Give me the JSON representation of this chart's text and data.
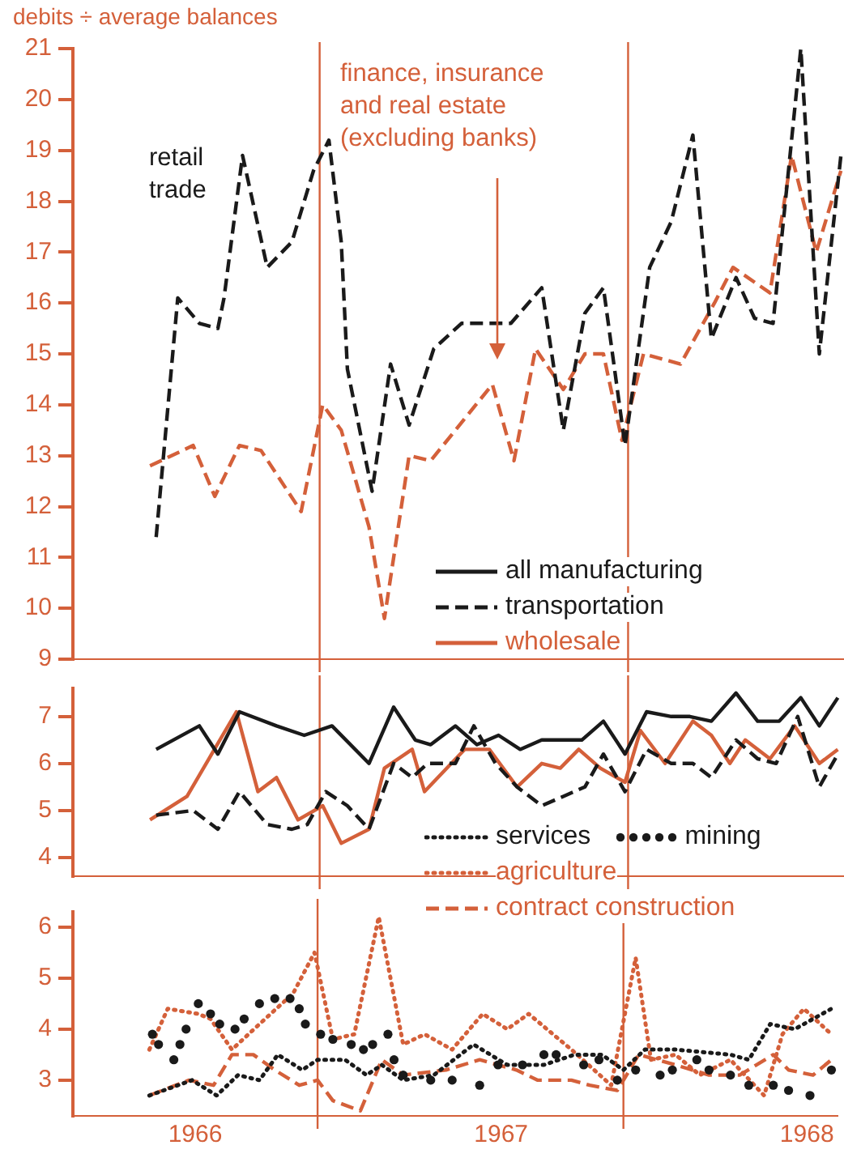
{
  "chart_data": [
    {
      "type": "line",
      "ylabel": "debits ÷ average balances",
      "xlim": [
        1965.6,
        1968.1
      ],
      "xticks": [
        1966,
        1967,
        1968
      ],
      "ylim": [
        9,
        21
      ],
      "yticks": [
        9,
        10,
        11,
        12,
        13,
        14,
        15,
        16,
        17,
        18,
        19,
        20,
        21
      ],
      "tick_labels": "y",
      "legend": false,
      "ref_lines": [
        {
          "axis": "x",
          "value": 1966.4,
          "color": "#d4603a"
        },
        {
          "axis": "x",
          "value": 1967.4,
          "color": "#d4603a"
        }
      ],
      "series": [
        {
          "name": "retail trade",
          "color": "#1a1a1a",
          "line_style": "dashed",
          "x": [
            1965.87,
            1965.94,
            1966.01,
            1966.07,
            1966.09,
            1966.15,
            1966.23,
            1966.31,
            1966.38,
            1966.43,
            1966.47,
            1966.49,
            1966.57,
            1966.63,
            1966.69,
            1966.77,
            1966.86,
            1967.02,
            1967.12,
            1967.19,
            1967.26,
            1967.32,
            1967.39,
            1967.47,
            1967.54,
            1967.61,
            1967.67,
            1967.75,
            1967.81,
            1967.87,
            1967.96,
            1968.02,
            1968.09
          ],
          "values": [
            11.4,
            16.1,
            15.6,
            15.5,
            16.1,
            18.9,
            16.7,
            17.2,
            18.6,
            19.2,
            17.2,
            14.7,
            12.3,
            14.8,
            13.6,
            15.1,
            15.6,
            15.6,
            16.3,
            13.5,
            15.8,
            16.3,
            13.2,
            16.7,
            17.6,
            19.3,
            15.3,
            16.5,
            15.7,
            15.6,
            21.0,
            15.0,
            18.9
          ]
        },
        {
          "name": "finance, insurance and real estate (excluding banks)",
          "color": "#d4603a",
          "line_style": "dashed",
          "x": [
            1965.85,
            1965.99,
            1966.06,
            1966.14,
            1966.21,
            1966.34,
            1966.41,
            1966.47,
            1966.56,
            1966.61,
            1966.69,
            1966.76,
            1966.84,
            1966.96,
            1967.03,
            1967.1,
            1967.19,
            1967.26,
            1967.32,
            1967.38,
            1967.45,
            1967.57,
            1967.68,
            1967.74,
            1967.86,
            1967.93,
            1968.01,
            1968.09
          ],
          "values": [
            12.8,
            13.2,
            12.2,
            13.2,
            13.1,
            11.9,
            14.0,
            13.5,
            11.6,
            9.8,
            13.0,
            12.9,
            13.5,
            14.4,
            12.9,
            15.1,
            14.3,
            15.0,
            15.0,
            13.3,
            15.0,
            14.8,
            16.0,
            16.7,
            16.2,
            18.9,
            17.0,
            18.6
          ]
        }
      ]
    },
    {
      "type": "line",
      "xlim": [
        1965.6,
        1968.1
      ],
      "xticks": [
        1966,
        1967,
        1968
      ],
      "ylim": [
        3.6,
        7.6
      ],
      "yticks": [
        4,
        5,
        6,
        7
      ],
      "tick_labels": "y",
      "legend": "top right",
      "ref_lines": [
        {
          "axis": "x",
          "value": 1966.4,
          "color": "#d4603a"
        },
        {
          "axis": "x",
          "value": 1967.4,
          "color": "#d4603a"
        }
      ],
      "series": [
        {
          "name": "all manufacturing",
          "color": "#1a1a1a",
          "line_style": "solid",
          "x": [
            1965.87,
            1966.01,
            1966.07,
            1966.14,
            1966.26,
            1966.35,
            1966.44,
            1966.56,
            1966.64,
            1966.71,
            1966.76,
            1966.84,
            1966.91,
            1966.98,
            1967.05,
            1967.12,
            1967.19,
            1967.25,
            1967.32,
            1967.39,
            1967.46,
            1967.54,
            1967.6,
            1967.67,
            1967.75,
            1967.82,
            1967.89,
            1967.96,
            1968.02,
            1968.08
          ],
          "values": [
            6.3,
            6.8,
            6.2,
            7.1,
            6.8,
            6.6,
            6.8,
            6.0,
            7.2,
            6.5,
            6.4,
            6.8,
            6.4,
            6.6,
            6.3,
            6.5,
            6.5,
            6.5,
            6.9,
            6.2,
            7.1,
            7.0,
            7.0,
            6.9,
            7.5,
            6.9,
            6.9,
            7.4,
            6.8,
            7.4
          ]
        },
        {
          "name": "transportation",
          "color": "#1a1a1a",
          "line_style": "dashed",
          "x": [
            1965.87,
            1965.99,
            1966.07,
            1966.14,
            1966.23,
            1966.31,
            1966.36,
            1966.42,
            1966.49,
            1966.56,
            1966.64,
            1966.7,
            1966.75,
            1966.84,
            1966.9,
            1966.97,
            1967.04,
            1967.12,
            1967.19,
            1967.26,
            1967.32,
            1967.39,
            1967.46,
            1967.54,
            1967.61,
            1967.67,
            1967.75,
            1967.82,
            1967.88,
            1967.95,
            1968.02,
            1968.08
          ],
          "values": [
            4.9,
            5.0,
            4.6,
            5.4,
            4.7,
            4.6,
            4.7,
            5.4,
            5.1,
            4.6,
            6.0,
            5.7,
            6.0,
            6.0,
            6.8,
            6.0,
            5.5,
            5.1,
            5.3,
            5.5,
            6.2,
            5.4,
            6.3,
            6.0,
            6.0,
            5.7,
            6.5,
            6.1,
            6.0,
            7.0,
            5.5,
            6.2
          ]
        },
        {
          "name": "wholesale",
          "color": "#d4603a",
          "line_style": "solid",
          "x": [
            1965.85,
            1965.97,
            1966.05,
            1966.13,
            1966.2,
            1966.26,
            1966.33,
            1966.41,
            1966.47,
            1966.56,
            1966.61,
            1966.7,
            1966.74,
            1966.87,
            1966.95,
            1967.04,
            1967.12,
            1967.18,
            1967.24,
            1967.31,
            1967.39,
            1967.44,
            1967.52,
            1967.61,
            1967.67,
            1967.73,
            1967.78,
            1967.86,
            1967.94,
            1968.02,
            1968.08
          ],
          "values": [
            4.8,
            5.3,
            6.2,
            7.1,
            5.4,
            5.7,
            4.8,
            5.1,
            4.3,
            4.6,
            5.9,
            6.3,
            5.4,
            6.3,
            6.3,
            5.5,
            6.0,
            5.9,
            6.3,
            5.9,
            5.6,
            6.7,
            6.0,
            6.9,
            6.6,
            6.0,
            6.5,
            6.1,
            6.8,
            6.0,
            6.3
          ]
        }
      ]
    },
    {
      "type": "line",
      "xlim": [
        1965.6,
        1968.1
      ],
      "ylim": [
        2.3,
        6.3
      ],
      "yticks": [
        3,
        4,
        5,
        6
      ],
      "xticks": [
        1966,
        1967,
        1968
      ],
      "legend": "top right",
      "ref_lines": [
        {
          "axis": "x",
          "value": 1966.4,
          "color": "#d4603a"
        },
        {
          "axis": "x",
          "value": 1967.4,
          "color": "#d4603a"
        }
      ],
      "series": [
        {
          "name": "services",
          "color": "#1a1a1a",
          "line_style": "dotted",
          "x": [
            1965.85,
            1965.99,
            1966.07,
            1966.14,
            1966.21,
            1966.27,
            1966.35,
            1966.4,
            1966.49,
            1966.56,
            1966.61,
            1966.68,
            1966.78,
            1966.91,
            1967.02,
            1967.14,
            1967.24,
            1967.33,
            1967.4,
            1967.47,
            1967.57,
            1967.75,
            1967.81,
            1967.88,
            1967.96,
            1968.08
          ],
          "values": [
            2.7,
            3.0,
            2.7,
            3.1,
            3.0,
            3.5,
            3.2,
            3.4,
            3.4,
            3.1,
            3.3,
            3.0,
            3.1,
            3.7,
            3.3,
            3.3,
            3.5,
            3.5,
            3.2,
            3.6,
            3.6,
            3.5,
            3.4,
            4.1,
            4.0,
            4.4
          ]
        },
        {
          "name": "mining",
          "type": "scatter",
          "color": "#1a1a1a",
          "marker": "circle",
          "x": [
            1965.86,
            1965.88,
            1965.93,
            1965.95,
            1965.97,
            1966.01,
            1966.05,
            1966.08,
            1966.13,
            1966.16,
            1966.21,
            1966.26,
            1966.31,
            1966.34,
            1966.36,
            1966.41,
            1966.45,
            1966.51,
            1966.55,
            1966.58,
            1966.63,
            1966.65,
            1966.68,
            1966.77,
            1966.84,
            1966.93,
            1966.99,
            1967.07,
            1967.14,
            1967.18,
            1967.27,
            1967.32,
            1967.38,
            1967.44,
            1967.52,
            1967.56,
            1967.64,
            1967.68,
            1967.75,
            1967.81,
            1967.89,
            1967.94,
            1968.01,
            1968.08
          ],
          "values": [
            3.9,
            3.7,
            3.4,
            3.7,
            4.0,
            4.5,
            4.3,
            4.1,
            4.0,
            4.2,
            4.5,
            4.6,
            4.6,
            4.4,
            4.1,
            3.9,
            3.8,
            3.7,
            3.6,
            3.7,
            3.9,
            3.4,
            3.1,
            3.0,
            3.0,
            2.9,
            3.3,
            3.3,
            3.5,
            3.5,
            3.3,
            3.4,
            3.0,
            3.2,
            3.1,
            3.2,
            3.4,
            3.2,
            3.1,
            2.9,
            2.9,
            2.8,
            2.7,
            3.2
          ]
        },
        {
          "name": "agriculture",
          "color": "#d4603a",
          "line_style": "dotted",
          "x": [
            1965.85,
            1965.91,
            1966.01,
            1966.05,
            1966.12,
            1966.21,
            1966.32,
            1966.39,
            1966.45,
            1966.52,
            1966.6,
            1966.68,
            1966.75,
            1966.84,
            1966.94,
            1967.02,
            1967.09,
            1967.23,
            1967.36,
            1967.44,
            1967.49,
            1967.57,
            1967.65,
            1967.75,
            1967.86,
            1967.92,
            1967.99,
            1968.08
          ],
          "values": [
            3.6,
            4.4,
            4.3,
            4.2,
            3.6,
            4.1,
            4.7,
            5.5,
            3.8,
            3.9,
            6.2,
            3.7,
            3.9,
            3.6,
            4.3,
            4.0,
            4.3,
            3.6,
            2.9,
            5.4,
            3.4,
            3.5,
            3.1,
            3.4,
            2.7,
            3.9,
            4.4,
            3.9
          ]
        },
        {
          "name": "contract construction",
          "color": "#d4603a",
          "line_style": "dashed",
          "x": [
            1965.85,
            1965.98,
            1966.06,
            1966.12,
            1966.19,
            1966.26,
            1966.34,
            1966.4,
            1966.45,
            1966.54,
            1966.61,
            1966.68,
            1966.82,
            1966.93,
            1967.05,
            1967.12,
            1967.23,
            1967.29,
            1967.38,
            1967.45,
            1967.57,
            1967.68,
            1967.78,
            1967.89,
            1967.94,
            1968.02,
            1968.08
          ],
          "values": [
            2.7,
            3.0,
            2.9,
            3.5,
            3.5,
            3.2,
            2.9,
            3.0,
            2.6,
            2.4,
            3.4,
            3.1,
            3.2,
            3.4,
            3.2,
            3.0,
            3.0,
            2.9,
            2.8,
            3.5,
            3.3,
            3.1,
            3.1,
            3.5,
            3.2,
            3.1,
            3.4
          ]
        }
      ]
    }
  ]
}
